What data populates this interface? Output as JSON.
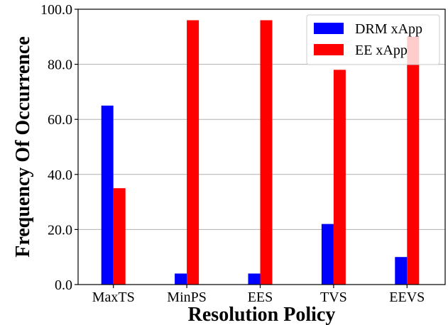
{
  "chart_data": {
    "type": "bar",
    "title": "",
    "xlabel": "Resolution Policy",
    "ylabel": "Frequency Of Occurrence",
    "categories": [
      "MaxTS",
      "MinPS",
      "EES",
      "TVS",
      "EEVS"
    ],
    "series": [
      {
        "name": "DRM xApp",
        "color": "#0000ff",
        "values": [
          65,
          4,
          4,
          22,
          10
        ]
      },
      {
        "name": "EE xApp",
        "color": "#ff0000",
        "values": [
          35,
          96,
          96,
          78,
          90
        ]
      }
    ],
    "ylim": [
      0,
      100
    ],
    "yticks": [
      "0.0",
      "20.0",
      "40.0",
      "60.0",
      "80.0",
      "100.0"
    ],
    "grid": "horizontal",
    "legend_position": "top-right"
  }
}
